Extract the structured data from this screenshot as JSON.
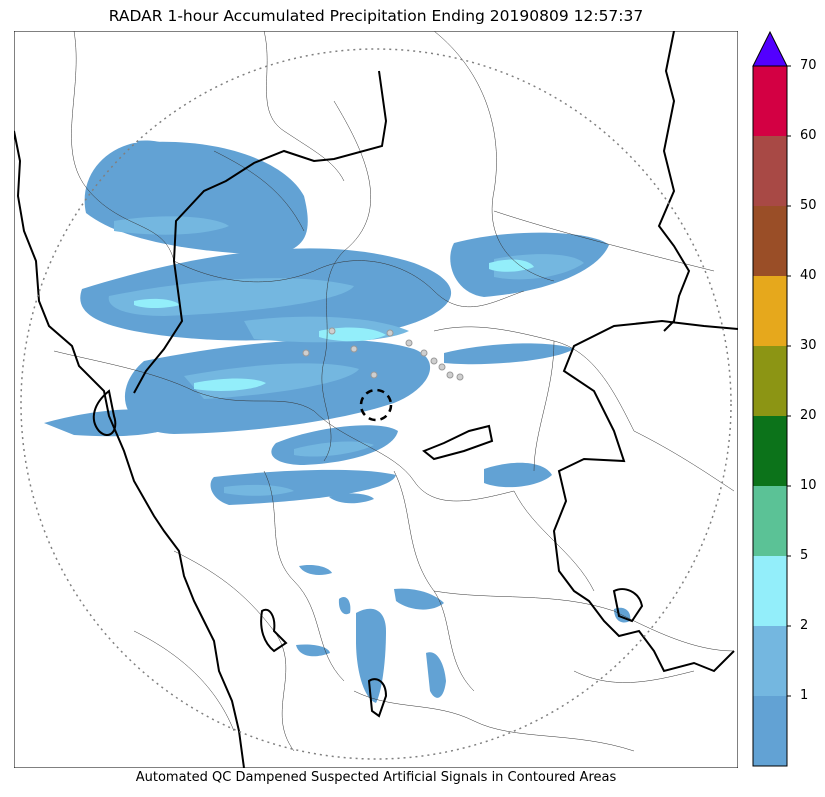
{
  "title": "RADAR 1-hour Accumulated Precipitation Ending 20190809 12:57:37",
  "caption": "Automated QC Dampened Suspected Artificial Signals in Contoured Areas",
  "colorbar": {
    "bins": [
      {
        "color": "#62a2d4",
        "label": "1"
      },
      {
        "color": "#74b7e0",
        "label": "2"
      },
      {
        "color": "#93eefa",
        "label": "5"
      },
      {
        "color": "#5bc296",
        "label": "10"
      },
      {
        "color": "#0c731a",
        "label": "20"
      },
      {
        "color": "#8c9514",
        "label": "30"
      },
      {
        "color": "#e6a81c",
        "label": "40"
      },
      {
        "color": "#9a4e27",
        "label": "50"
      },
      {
        "color": "#a84945",
        "label": "60"
      },
      {
        "color": "#d30043",
        "label": "70"
      }
    ],
    "extend_color": "#5200ff"
  },
  "map_layers": {
    "radar_range_ring": "dotted circle",
    "radar_site_marker": "dashed circle",
    "state_borders": "thick black lines",
    "district_borders": "thin lines",
    "coastline": "thick black line"
  },
  "colors": {
    "rain_light": "#62a2d4",
    "rain_moderate": "#74b7e0",
    "rain_heavy": "#93eefa"
  }
}
